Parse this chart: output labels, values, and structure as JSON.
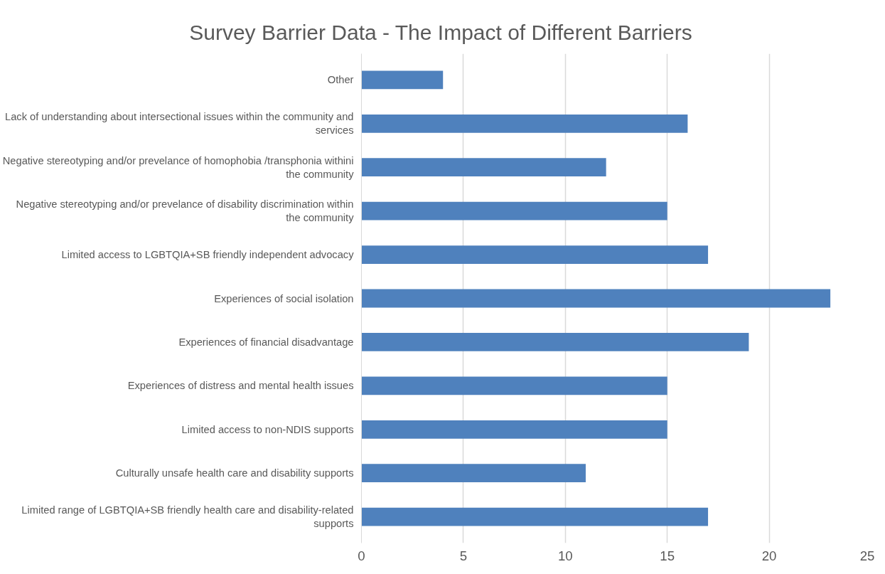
{
  "chart_data": {
    "type": "bar",
    "orientation": "horizontal",
    "title": "Survey Barrier Data - The Impact of Different Barriers",
    "categories": [
      "Other",
      "Lack of understanding about intersectional issues within the community and services",
      "Negative stereotyping and/or prevelance of homophobia /transphonia withini the community",
      "Negative stereotyping and/or prevelance of disability discrimination within the community",
      "Limited access to LGBTQIA+SB friendly independent advocacy",
      "Experiences of social isolation",
      "Experiences of financial disadvantage",
      "Experiences of distress and mental health issues",
      "Limited access to non-NDIS supports",
      "Culturally unsafe health care and disability supports",
      "Limited range of LGBTQIA+SB friendly health care and disability-related supports"
    ],
    "values": [
      4,
      16,
      12,
      15,
      17,
      23,
      19,
      15,
      15,
      11,
      17
    ],
    "color": "#4f81bd",
    "xlim": [
      0,
      25
    ],
    "xticks": [
      0,
      5,
      10,
      15,
      20,
      25
    ],
    "grid": "x"
  }
}
